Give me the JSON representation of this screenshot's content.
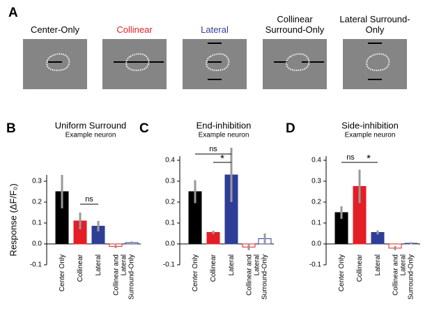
{
  "panel_a": {
    "letter": "A",
    "stimuli": [
      {
        "label": "Center-Only",
        "color": "#000000"
      },
      {
        "label": "Collinear",
        "color": "#e41e25"
      },
      {
        "label": "Lateral",
        "color": "#2e3e97"
      },
      {
        "label": "Collinear Surround-Only",
        "color": "#000000"
      },
      {
        "label": "Lateral Surround-Only",
        "color": "#000000"
      }
    ]
  },
  "chart_data": [
    {
      "type": "bar",
      "panel": "B",
      "title": "Uniform Surround",
      "subtitle": "Example neuron",
      "ylabel": "Response (ΔF/F₀)",
      "categories": [
        "Center Only",
        "Collinear",
        "Lateral",
        "Collinear and Lateral Surround-Only",
        null
      ],
      "values": [
        0.25,
        0.11,
        0.085,
        -0.012,
        0.006
      ],
      "errors": [
        0.08,
        0.04,
        0.025,
        0.008,
        0.006
      ],
      "colors": [
        "#000000",
        "#e41e25",
        "#2e3e97",
        "#ffffff",
        "#ffffff"
      ],
      "edgecolors": [
        "#000000",
        "#e41e25",
        "#2e3e97",
        "#e41e25",
        "#2e3e97"
      ],
      "error_color": "#999999",
      "ylim": [
        -0.1,
        0.33
      ],
      "yticks": [
        -0.1,
        {
          "value": 0,
          "label": "0.0"
        },
        0.1,
        0.2,
        0.3
      ],
      "annotations": [
        {
          "text": "ns",
          "from": 1,
          "to": 2,
          "y": 0.19
        }
      ]
    },
    {
      "type": "bar",
      "panel": "C",
      "title": "End-inhibition",
      "subtitle": "Example neuron",
      "categories": [
        "Center Only",
        "Collinear",
        "Lateral",
        "Collinear and Lateral Surround-Only",
        null
      ],
      "values": [
        0.25,
        0.055,
        0.33,
        -0.015,
        0.025
      ],
      "errors": [
        0.055,
        0.008,
        0.13,
        0.015,
        0.025
      ],
      "colors": [
        "#000000",
        "#e41e25",
        "#2e3e97",
        "#ffffff",
        "#ffffff"
      ],
      "edgecolors": [
        "#000000",
        "#e41e25",
        "#2e3e97",
        "#e41e25",
        "#2e3e97"
      ],
      "error_color": "#999999",
      "ylim": [
        -0.1,
        0.42
      ],
      "yticks": [
        -0.1,
        {
          "value": 0,
          "label": "0.0"
        },
        0.1,
        0.2,
        0.3,
        0.4
      ],
      "annotations": [
        {
          "text": "ns",
          "from": 0,
          "to": 2,
          "y": 0.43
        },
        {
          "text": "*",
          "from": 1,
          "to": 2,
          "y": 0.39
        }
      ]
    },
    {
      "type": "bar",
      "panel": "D",
      "title": "Side-inhibition",
      "subtitle": "Example neuron",
      "categories": [
        "Center Only",
        "Collinear",
        "Lateral",
        "Collinear and Lateral Surround-Only",
        null
      ],
      "values": [
        0.15,
        0.275,
        0.055,
        -0.02,
        0.003
      ],
      "errors": [
        0.03,
        0.08,
        0.01,
        0.01,
        0.005
      ],
      "colors": [
        "#000000",
        "#e41e25",
        "#2e3e97",
        "#ffffff",
        "#ffffff"
      ],
      "edgecolors": [
        "#000000",
        "#e41e25",
        "#2e3e97",
        "#e41e25",
        "#2e3e97"
      ],
      "error_color": "#999999",
      "ylim": [
        -0.1,
        0.42
      ],
      "yticks": [
        -0.1,
        {
          "value": 0,
          "label": "0.0"
        },
        0.1,
        0.2,
        0.3,
        0.4
      ],
      "annotations": [
        {
          "text": "ns",
          "from": 0,
          "to": 1,
          "y": 0.39
        },
        {
          "text": "*",
          "from": 1,
          "to": 2,
          "y": 0.39
        }
      ]
    }
  ]
}
